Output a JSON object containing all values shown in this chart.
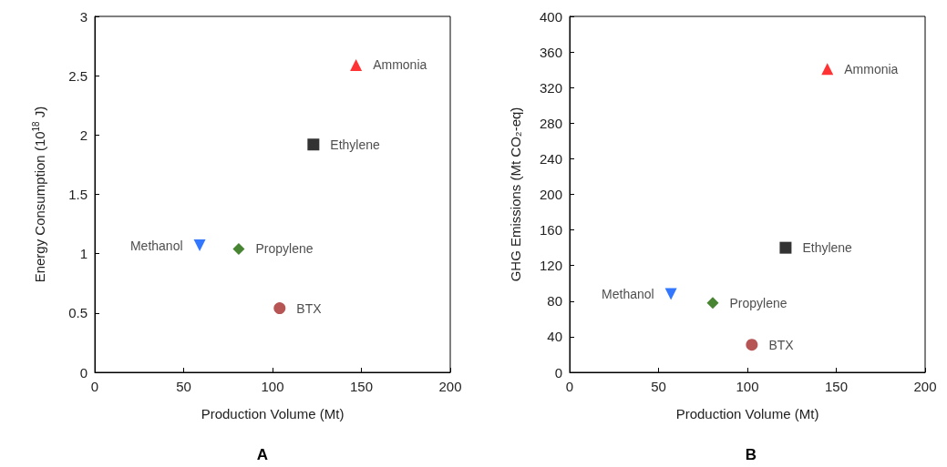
{
  "chart_data": [
    {
      "type": "scatter",
      "title": "A",
      "xlabel": "Production Volume (Mt)",
      "ylabel": "Energy Consumption (10$^{18}$ J)",
      "xlim": [
        0,
        200
      ],
      "xticks": [
        0,
        50,
        100,
        150,
        200
      ],
      "ylim": [
        0,
        3
      ],
      "yticks": [
        0,
        0.5,
        1,
        1.5,
        2,
        2.5,
        3
      ],
      "grid": false,
      "legend": false,
      "series": [
        {
          "name": "Ammonia",
          "color": "#ff0000",
          "marker": "triangle",
          "x": [
            147
          ],
          "values": [
            2.59
          ]
        },
        {
          "name": "Ethylene",
          "color": "#000000",
          "marker": "square",
          "x": [
            123
          ],
          "values": [
            1.92
          ]
        },
        {
          "name": "Methanol",
          "color": "#0055ff",
          "marker": "triangle-down",
          "x": [
            59
          ],
          "values": [
            1.07
          ]
        },
        {
          "name": "Propylene",
          "color": "#1a6600",
          "marker": "diamond",
          "x": [
            81
          ],
          "values": [
            1.04
          ]
        },
        {
          "name": "BTX",
          "color": "#a52a2a",
          "marker": "circle",
          "x": [
            104
          ],
          "values": [
            0.54
          ]
        }
      ]
    },
    {
      "type": "scatter",
      "title": "B",
      "xlabel": "Production Volume (Mt)",
      "ylabel": "GHG Emissions (Mt CO₂-eq)",
      "xlim": [
        0,
        200
      ],
      "xticks": [
        0,
        50,
        100,
        150,
        200
      ],
      "ylim": [
        0,
        400
      ],
      "yticks": [
        0,
        40,
        80,
        120,
        160,
        200,
        240,
        280,
        320,
        360,
        400
      ],
      "grid": false,
      "legend": false,
      "series": [
        {
          "name": "Ammonia",
          "color": "#ff0000",
          "marker": "triangle",
          "x": [
            145
          ],
          "values": [
            341
          ]
        },
        {
          "name": "Ethylene",
          "color": "#000000",
          "marker": "square",
          "x": [
            121.5
          ],
          "values": [
            140
          ]
        },
        {
          "name": "Methanol",
          "color": "#0055ff",
          "marker": "triangle-down",
          "x": [
            57
          ],
          "values": [
            88
          ]
        },
        {
          "name": "Propylene",
          "color": "#1a6600",
          "marker": "diamond",
          "x": [
            80.5
          ],
          "values": [
            78
          ]
        },
        {
          "name": "BTX",
          "color": "#a52a2a",
          "marker": "circle",
          "x": [
            102.5
          ],
          "values": [
            31
          ]
        }
      ]
    }
  ]
}
